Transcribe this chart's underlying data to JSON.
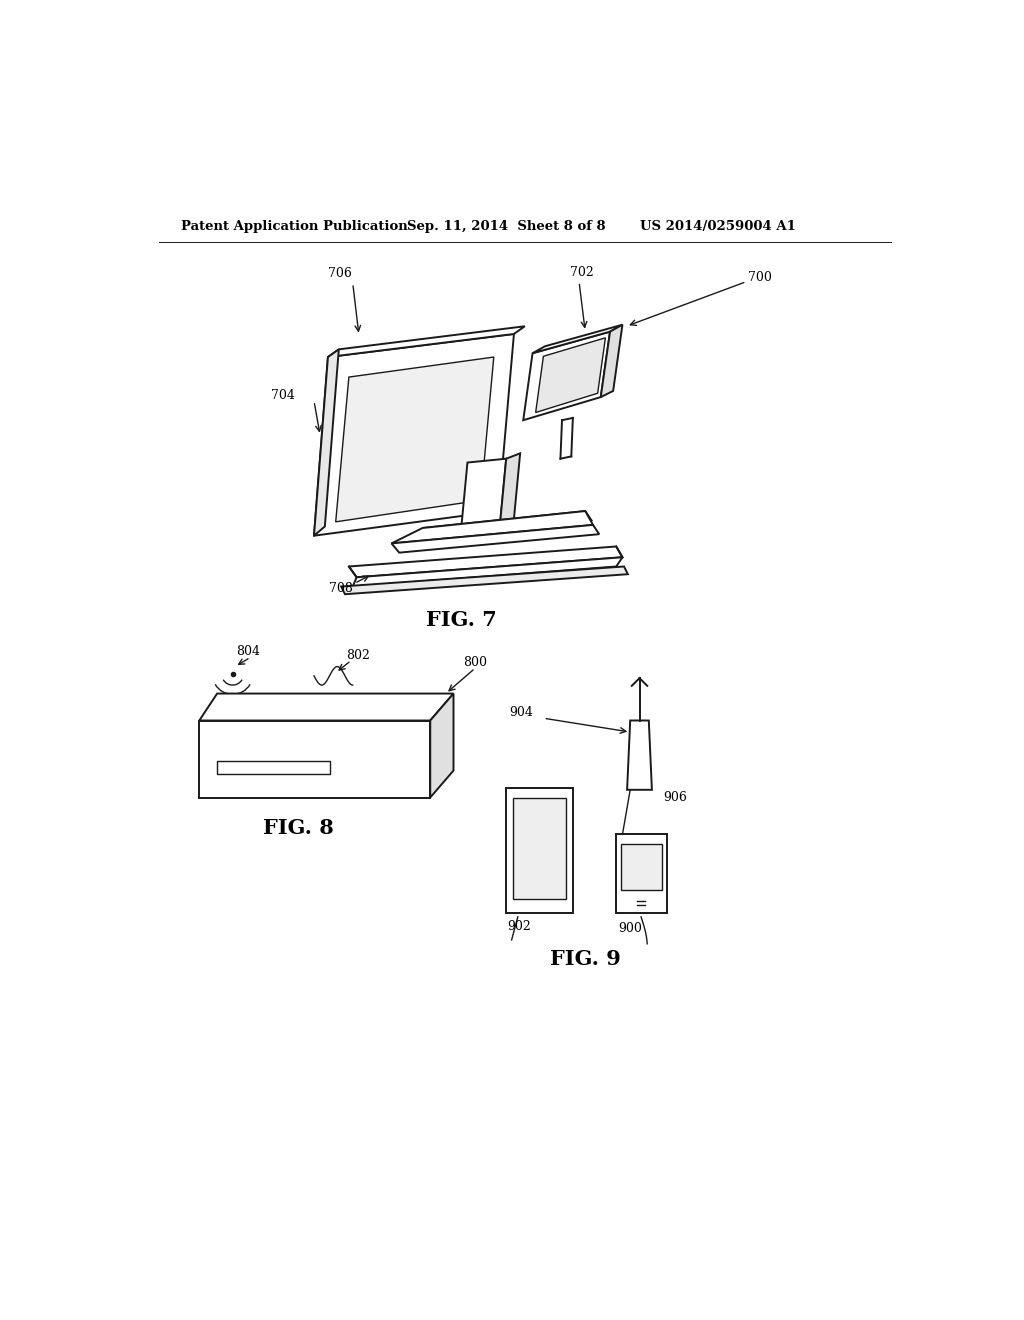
{
  "bg_color": "#ffffff",
  "header_left": "Patent Application Publication",
  "header_center": "Sep. 11, 2014  Sheet 8 of 8",
  "header_right": "US 2014/0259004 A1",
  "fig7_label": "FIG. 7",
  "fig8_label": "FIG. 8",
  "fig9_label": "FIG. 9",
  "line_color": "#1a1a1a",
  "lw": 1.4,
  "lw_thin": 1.0
}
